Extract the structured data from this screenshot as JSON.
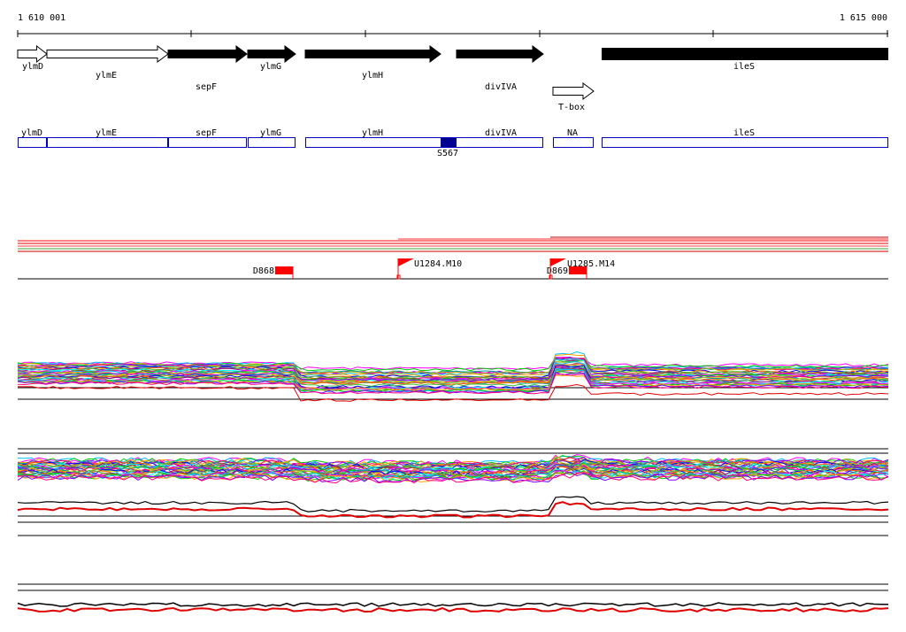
{
  "ruler": {
    "start_label": "1 610 001",
    "end_label": "1 615 000"
  },
  "genes": [
    {
      "name": "ylmD",
      "strand": "plus",
      "fill": "white"
    },
    {
      "name": "ylmE",
      "strand": "plus",
      "fill": "white"
    },
    {
      "name": "sepF",
      "strand": "plus",
      "fill": "black"
    },
    {
      "name": "ylmG",
      "strand": "plus",
      "fill": "black"
    },
    {
      "name": "ylmH",
      "strand": "plus",
      "fill": "black"
    },
    {
      "name": "divIVA",
      "strand": "plus",
      "fill": "black"
    },
    {
      "name": "T-box",
      "strand": "plus",
      "fill": "white"
    },
    {
      "name": "ileS",
      "strand": "plus",
      "fill": "black"
    }
  ],
  "segments": [
    {
      "name": "ylmD"
    },
    {
      "name": "ylmE"
    },
    {
      "name": "sepF"
    },
    {
      "name": "ylmG"
    },
    {
      "name": "ylmH"
    },
    {
      "name": "divIVA"
    },
    {
      "name": "NA"
    },
    {
      "name": "ileS"
    }
  ],
  "marker_label": "S567",
  "features": [
    {
      "label": "D868",
      "type": "box"
    },
    {
      "label": "U1284.M10",
      "type": "flag"
    },
    {
      "label": "D869",
      "type": "box"
    },
    {
      "label": "U1285.M14",
      "type": "flag"
    }
  ],
  "colors": {
    "gene_outline": "#000000",
    "segment_outline": "#0000c0",
    "marker_fill": "#000090",
    "feature_red": "#ff0000",
    "highlight_trace": "#e00000",
    "trace_palette": [
      "#ff00ff",
      "#00c0ff",
      "#00d000",
      "#ffa000",
      "#8000ff",
      "#ff0080",
      "#00a0a0",
      "#c0c000",
      "#0000ff",
      "#ff6000",
      "#40c040",
      "#a000a0",
      "#00ffff",
      "#808000"
    ]
  }
}
